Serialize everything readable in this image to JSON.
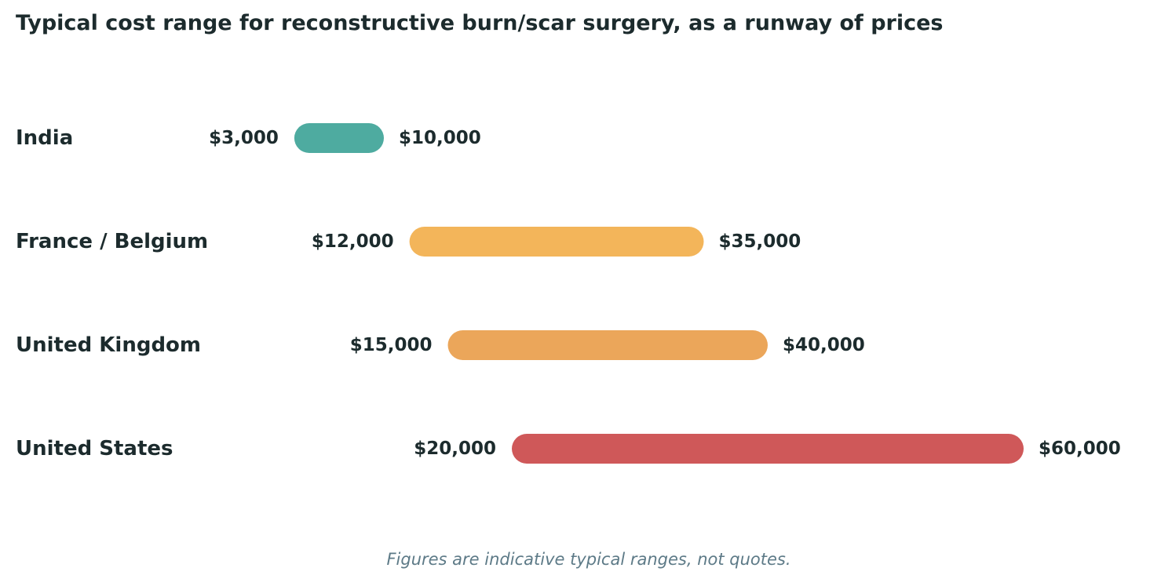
{
  "chart_data": {
    "type": "bar",
    "title": "Typical cost range for reconstructive burn/scar surgery, as a runway of prices",
    "footnote": "Figures are indicative typical ranges, not quotes.",
    "categories": [
      "India",
      "France / Belgium",
      "United Kingdom",
      "United States"
    ],
    "ranges": [
      {
        "category": "India",
        "low": 3000,
        "high": 10000,
        "low_label": "$3,000",
        "high_label": "$10,000",
        "color": "#4eaba0"
      },
      {
        "category": "France / Belgium",
        "low": 12000,
        "high": 35000,
        "low_label": "$12,000",
        "high_label": "$35,000",
        "color": "#f3b55a"
      },
      {
        "category": "United Kingdom",
        "low": 15000,
        "high": 40000,
        "low_label": "$15,000",
        "high_label": "$40,000",
        "color": "#eba65a"
      },
      {
        "category": "United States",
        "low": 20000,
        "high": 60000,
        "low_label": "$20,000",
        "high_label": "$60,000",
        "color": "#cf5859"
      }
    ],
    "xlim": [
      0,
      60000
    ],
    "grid": false,
    "legend": "none"
  }
}
